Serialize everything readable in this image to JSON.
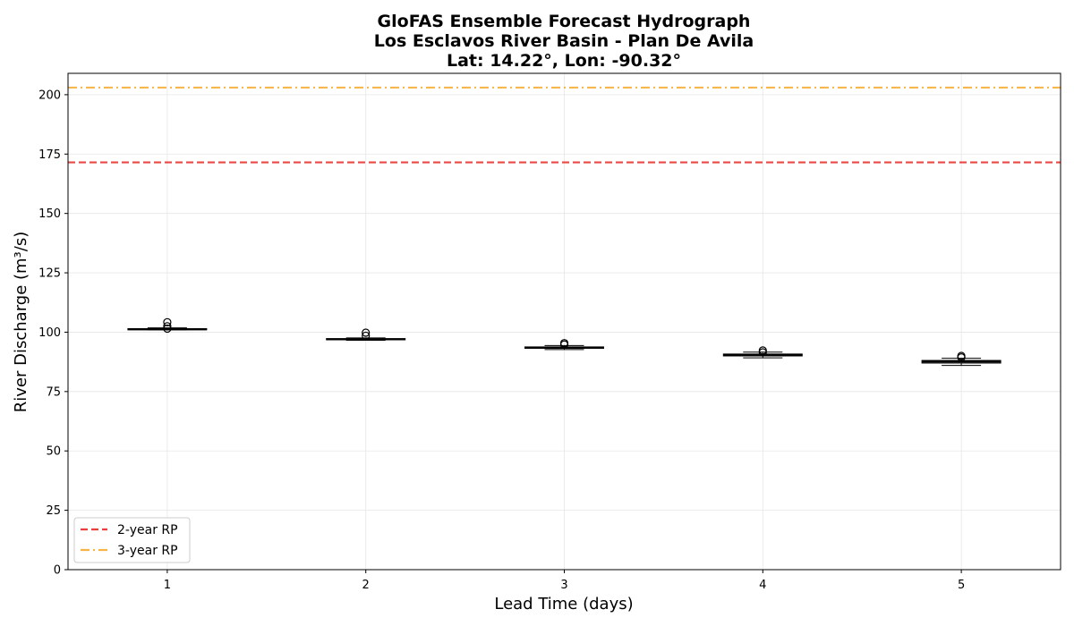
{
  "chart_data": {
    "type": "box",
    "title_lines": [
      "GloFAS Ensemble Forecast Hydrograph",
      "Los Esclavos River Basin - Plan De Avila",
      "Lat: 14.22°, Lon: -90.32°"
    ],
    "xlabel": "Lead Time (days)",
    "ylabel": "River Discharge (m³/s)",
    "categories": [
      "1",
      "2",
      "3",
      "4",
      "5"
    ],
    "xlim": [
      0.5,
      5.5
    ],
    "ylim": [
      0,
      209
    ],
    "yticks": [
      0,
      25,
      50,
      75,
      100,
      125,
      150,
      175,
      200
    ],
    "grid": true,
    "boxes": [
      {
        "x": 1,
        "min": 101.0,
        "q1": 101.0,
        "median": 101.2,
        "q3": 101.5,
        "max": 101.8,
        "outliers": [
          101.5,
          102.5,
          104.2
        ]
      },
      {
        "x": 2,
        "min": 96.6,
        "q1": 96.8,
        "median": 97.0,
        "q3": 97.3,
        "max": 97.6,
        "outliers": [
          98.5,
          99.8
        ]
      },
      {
        "x": 3,
        "min": 92.7,
        "q1": 93.2,
        "median": 93.5,
        "q3": 93.8,
        "max": 94.4,
        "outliers": [
          94.8,
          95.4
        ]
      },
      {
        "x": 4,
        "min": 89.2,
        "q1": 90.0,
        "median": 90.4,
        "q3": 90.8,
        "max": 91.6,
        "outliers": [
          91.5,
          92.3
        ]
      },
      {
        "x": 5,
        "min": 86.0,
        "q1": 87.0,
        "median": 87.6,
        "q3": 88.1,
        "max": 89.0,
        "outliers": [
          89.4,
          90.0
        ]
      }
    ],
    "reference_lines": [
      {
        "name": "2-year RP",
        "value": 171.5,
        "color": "#e8403c",
        "style": "dashed"
      },
      {
        "name": "3-year RP",
        "value": 203.0,
        "color": "#f8b446",
        "style": "dashdot"
      }
    ],
    "legend_position": "lower-left"
  }
}
